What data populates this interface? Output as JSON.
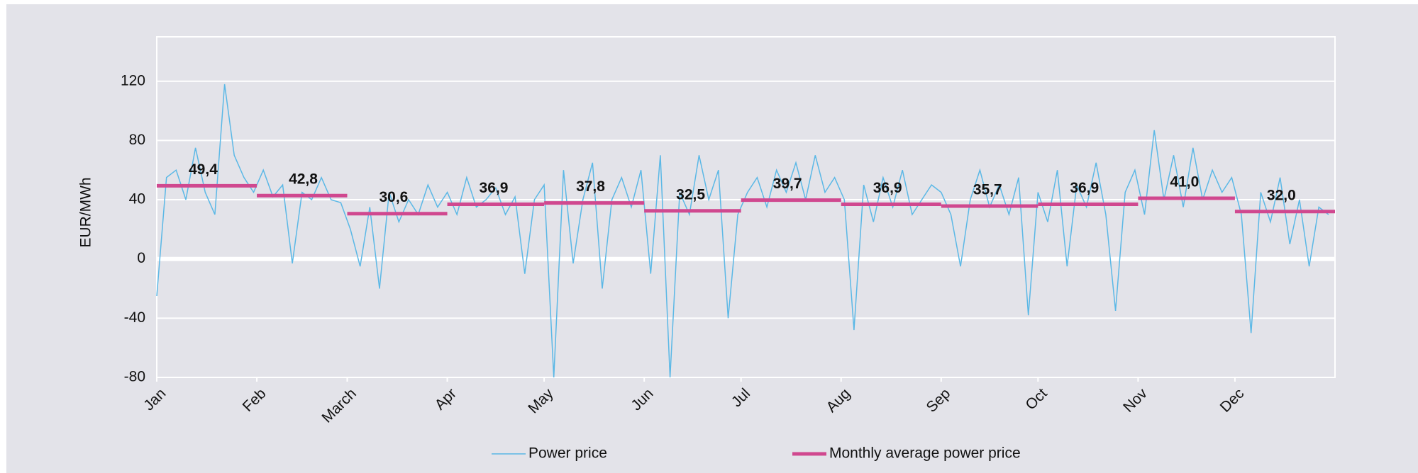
{
  "chart_data": {
    "type": "line",
    "y_label": "EUR/MWh",
    "xlim": [
      0,
      365
    ],
    "xticks": [
      {
        "value": 0,
        "label": "Jan"
      },
      {
        "value": 31,
        "label": "Feb"
      },
      {
        "value": 59,
        "label": "March"
      },
      {
        "value": 90,
        "label": "Apr"
      },
      {
        "value": 120,
        "label": "May"
      },
      {
        "value": 151,
        "label": "Jun"
      },
      {
        "value": 181,
        "label": "Jul"
      },
      {
        "value": 212,
        "label": "Aug"
      },
      {
        "value": 243,
        "label": "Sep"
      },
      {
        "value": 273,
        "label": "Oct"
      },
      {
        "value": 304,
        "label": "Nov"
      },
      {
        "value": 334,
        "label": "Dec"
      }
    ],
    "ylim": [
      -80,
      150
    ],
    "yticks": [
      -80,
      -40,
      0,
      40,
      80,
      120
    ],
    "grid": true,
    "legend": "bottom",
    "series": [
      {
        "name": "Power price",
        "color": "#5bb8e6",
        "style": "line",
        "x": [
          0,
          3,
          6,
          9,
          12,
          15,
          18,
          21,
          24,
          27,
          30,
          33,
          36,
          39,
          42,
          45,
          48,
          51,
          54,
          57,
          60,
          63,
          66,
          69,
          72,
          75,
          78,
          81,
          84,
          87,
          90,
          93,
          96,
          99,
          102,
          105,
          108,
          111,
          114,
          117,
          120,
          123,
          126,
          129,
          132,
          135,
          138,
          141,
          144,
          147,
          150,
          153,
          156,
          159,
          162,
          165,
          168,
          171,
          174,
          177,
          180,
          183,
          186,
          189,
          192,
          195,
          198,
          201,
          204,
          207,
          210,
          213,
          216,
          219,
          222,
          225,
          228,
          231,
          234,
          237,
          240,
          243,
          246,
          249,
          252,
          255,
          258,
          261,
          264,
          267,
          270,
          273,
          276,
          279,
          282,
          285,
          288,
          291,
          294,
          297,
          300,
          303,
          306,
          309,
          312,
          315,
          318,
          321,
          324,
          327,
          330,
          333,
          336,
          339,
          342,
          345,
          348,
          351,
          354,
          357,
          360,
          363
        ],
        "values": [
          -25,
          55,
          60,
          40,
          75,
          45,
          30,
          118,
          70,
          55,
          45,
          60,
          42,
          50,
          -3,
          45,
          40,
          55,
          40,
          38,
          20,
          -5,
          35,
          -20,
          45,
          25,
          40,
          30,
          50,
          35,
          45,
          30,
          55,
          35,
          40,
          48,
          30,
          42,
          -10,
          40,
          50,
          -80,
          60,
          -3,
          40,
          65,
          -20,
          40,
          55,
          35,
          60,
          -10,
          70,
          -80,
          45,
          30,
          70,
          40,
          60,
          -40,
          30,
          45,
          55,
          35,
          60,
          45,
          65,
          40,
          70,
          45,
          55,
          40,
          -48,
          50,
          25,
          55,
          35,
          60,
          30,
          40,
          50,
          45,
          30,
          -5,
          40,
          60,
          35,
          50,
          30,
          55,
          -38,
          45,
          25,
          60,
          -5,
          50,
          35,
          65,
          30,
          -35,
          45,
          60,
          30,
          87,
          40,
          70,
          35,
          75,
          40,
          60,
          45,
          55,
          30,
          -50,
          45,
          25,
          55,
          10,
          40,
          -5,
          35,
          30
        ]
      },
      {
        "name": "Monthly average power price",
        "color": "#d0488f",
        "style": "step",
        "x": [
          0,
          31,
          59,
          90,
          120,
          151,
          181,
          212,
          243,
          273,
          304,
          334
        ],
        "values": [
          49.4,
          42.8,
          30.6,
          36.9,
          37.8,
          32.5,
          39.7,
          36.9,
          35.7,
          36.9,
          41.0,
          32.0
        ],
        "value_labels": [
          "49,4",
          "42,8",
          "30,6",
          "36,9",
          "37,8",
          "32,5",
          "39,7",
          "36,9",
          "35,7",
          "36,9",
          "41,0",
          "32,0"
        ]
      }
    ]
  }
}
